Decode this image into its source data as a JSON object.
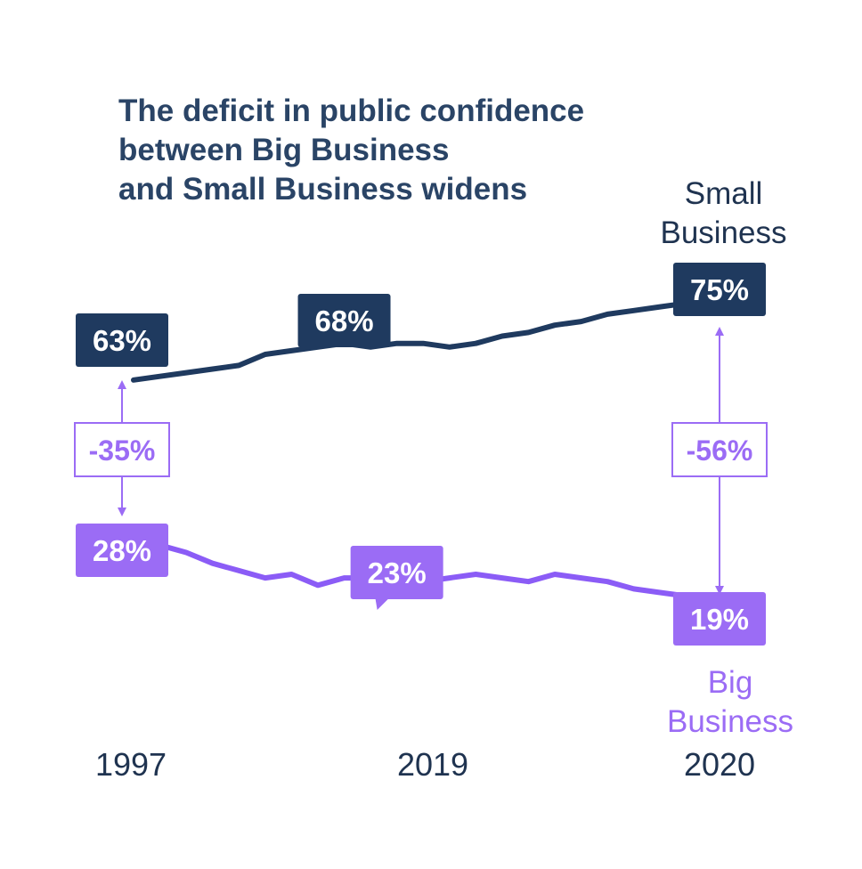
{
  "chart_data": {
    "type": "line",
    "title_lines": [
      "The deficit in public confidence",
      "between Big Business",
      "and Small Business widens"
    ],
    "x_tick_labels": [
      "1997",
      "2019",
      "2020"
    ],
    "series": [
      {
        "name_lines": [
          "Small",
          "Business"
        ],
        "color": "#1f3a5f",
        "values": [
          63,
          63.5,
          64,
          64.5,
          65,
          66.5,
          67,
          67.5,
          68,
          67.5,
          68,
          68,
          67.5,
          68,
          69,
          69.5,
          70.5,
          71,
          72,
          72.5,
          73,
          73.5,
          74,
          75
        ],
        "labels": [
          {
            "index": 0,
            "text": "63%"
          },
          {
            "index": 8,
            "text": "68%"
          },
          {
            "index": 23,
            "text": "75%"
          }
        ]
      },
      {
        "name_lines": [
          "Big",
          "Business"
        ],
        "color": "#8b5cf6",
        "values": [
          28,
          27.5,
          26.5,
          25,
          24,
          23,
          23.5,
          22,
          23,
          23,
          23,
          22.5,
          23,
          23.5,
          23,
          22.5,
          23.5,
          23,
          22.5,
          21.5,
          21,
          20.5,
          20,
          19
        ],
        "labels": [
          {
            "index": 0,
            "text": "28%"
          },
          {
            "index": 10,
            "text": "23%"
          },
          {
            "index": 23,
            "text": "19%"
          }
        ]
      }
    ],
    "gaps": [
      {
        "text": "-35%",
        "at": "1997"
      },
      {
        "text": "-56%",
        "at": "2020"
      }
    ]
  }
}
